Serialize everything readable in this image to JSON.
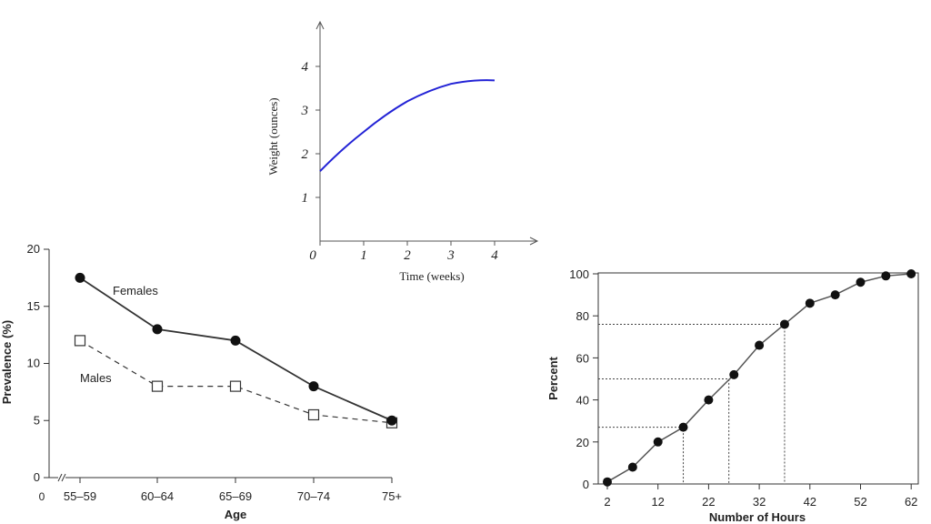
{
  "chart_data": [
    {
      "id": "weight",
      "type": "line",
      "title": "",
      "xlabel": "Time (weeks)",
      "ylabel": "Weight (ounces)",
      "xlim": [
        0,
        5
      ],
      "ylim": [
        0,
        5
      ],
      "xticks": [
        "0",
        "1",
        "2",
        "3",
        "4"
      ],
      "yticks": [
        "1",
        "2",
        "3",
        "4"
      ],
      "grid": false,
      "series": [
        {
          "color": "#2323d6",
          "x": [
            0,
            1,
            2,
            3,
            4
          ],
          "y": [
            1.6,
            2.5,
            3.2,
            3.6,
            3.68
          ]
        }
      ]
    },
    {
      "id": "prevalence",
      "type": "line",
      "title": "",
      "xlabel": "Age",
      "ylabel": "Prevalence (%)",
      "ylim": [
        0,
        20
      ],
      "categories": [
        "55–59",
        "60–64",
        "65–69",
        "70–74",
        "75+"
      ],
      "x_origin_label": "0",
      "yticks": [
        "0",
        "5",
        "10",
        "15",
        "20"
      ],
      "grid": false,
      "series": [
        {
          "name": "Females",
          "marker": "filled-circle",
          "line": "solid",
          "values": [
            17.5,
            13,
            12,
            8,
            5
          ]
        },
        {
          "name": "Males",
          "marker": "open-square",
          "line": "dashed",
          "values": [
            12,
            8,
            8,
            5.5,
            4.8
          ]
        }
      ]
    },
    {
      "id": "hours",
      "type": "line",
      "title": "",
      "xlabel": "Number of Hours",
      "ylabel": "Percent",
      "xlim": [
        2,
        62
      ],
      "ylim": [
        0,
        100
      ],
      "xticks": [
        "2",
        "12",
        "22",
        "32",
        "42",
        "52",
        "62"
      ],
      "yticks": [
        "0",
        "20",
        "40",
        "60",
        "80",
        "100"
      ],
      "grid": false,
      "series": [
        {
          "marker": "filled-circle",
          "line": "solid",
          "x": [
            2,
            7,
            12,
            17,
            22,
            27,
            32,
            37,
            42,
            47,
            52,
            57,
            62
          ],
          "y": [
            1,
            8,
            20,
            27,
            40,
            52,
            66,
            76,
            86,
            90,
            96,
            99,
            100
          ]
        }
      ],
      "reference_lines": [
        {
          "x": 17,
          "y": 27
        },
        {
          "x": 26,
          "y": 50
        },
        {
          "x": 37,
          "y": 76
        }
      ]
    }
  ]
}
